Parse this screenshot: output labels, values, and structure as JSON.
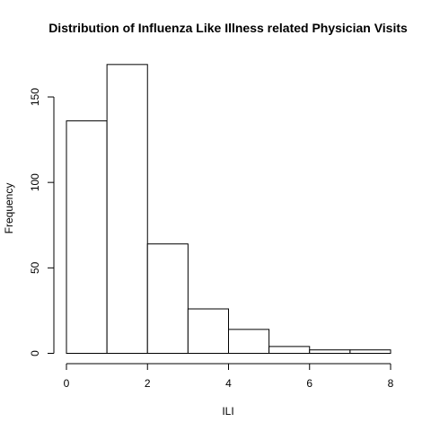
{
  "chart_data": {
    "type": "bar",
    "title": "Distribution of Influenza Like Illness related Physician Visits",
    "xlabel": "ILI",
    "ylabel": "Frequency",
    "bins": [
      {
        "x0": 0,
        "x1": 1,
        "value": 136
      },
      {
        "x0": 1,
        "x1": 2,
        "value": 169
      },
      {
        "x0": 2,
        "x1": 3,
        "value": 64
      },
      {
        "x0": 3,
        "x1": 4,
        "value": 26
      },
      {
        "x0": 4,
        "x1": 5,
        "value": 14
      },
      {
        "x0": 5,
        "x1": 6,
        "value": 4
      },
      {
        "x0": 6,
        "x1": 7,
        "value": 2
      },
      {
        "x0": 7,
        "x1": 8,
        "value": 2
      }
    ],
    "xlim": [
      0,
      8
    ],
    "ylim": [
      0,
      170
    ],
    "x_ticks": [
      0,
      2,
      4,
      6,
      8
    ],
    "y_ticks": [
      0,
      50,
      100,
      150
    ],
    "grid": false,
    "legend": "none",
    "colors": {
      "bar_fill": "#ffffff",
      "bar_stroke": "#000000"
    }
  }
}
